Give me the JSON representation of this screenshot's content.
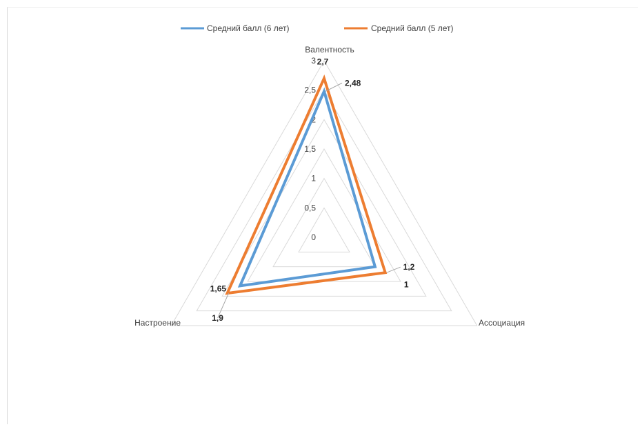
{
  "chart_data": {
    "type": "radar",
    "title": "",
    "axes": [
      "Валентность",
      "Ассоциация",
      "Настроение"
    ],
    "rlim": [
      0,
      3
    ],
    "ticks": [
      "0",
      "0,5",
      "1",
      "1,5",
      "2",
      "2,5",
      "3"
    ],
    "tick_values": [
      0,
      0.5,
      1,
      1.5,
      2,
      2.5,
      3
    ],
    "legend_position": "top",
    "grid": true,
    "series": [
      {
        "name": "Средний балл (6 лет)",
        "color": "#5b9bd5",
        "values": [
          2.48,
          1,
          1.65
        ],
        "labels": [
          "2,48",
          "1",
          "1,65"
        ]
      },
      {
        "name": "Средний балл (5 лет)",
        "color": "#ed7d31",
        "values": [
          2.7,
          1.2,
          1.9
        ],
        "labels": [
          "2,7",
          "1,2",
          "1,9"
        ]
      }
    ]
  }
}
